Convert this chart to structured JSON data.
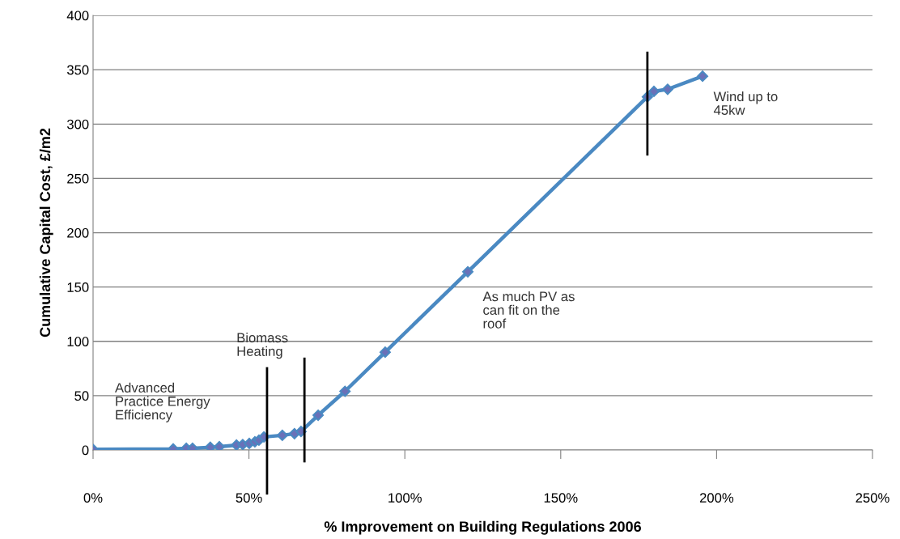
{
  "chart_data": {
    "type": "line",
    "xlabel": "% Improvement on Building Regulations 2006",
    "ylabel": "Cumulative Capital Cost, £/m2",
    "x": [
      0,
      25.7,
      29.9,
      31.9,
      37.6,
      40.5,
      46.0,
      48.0,
      50.1,
      51.9,
      53.2,
      54.8,
      60.7,
      64.6,
      66.7,
      72.2,
      80.8,
      93.7,
      120.2,
      177.8,
      179.9,
      184.3,
      195.5
    ],
    "series": [
      {
        "color": "#4a89c2",
        "values": [
          0.5,
          1,
          1.5,
          1.5,
          2.5,
          3,
          4.5,
          5,
          6,
          7.5,
          9,
          12,
          13.5,
          15,
          17,
          32,
          54,
          90,
          164,
          325,
          330,
          332,
          344
        ]
      }
    ],
    "marker": "diamond",
    "line_style": "solid",
    "grid": "y",
    "xlim": [
      0,
      250
    ],
    "xticks": [
      {
        "value": 0,
        "label": "0%"
      },
      {
        "value": 50,
        "label": "50%"
      },
      {
        "value": 100,
        "label": "100%"
      },
      {
        "value": 150,
        "label": "150%"
      },
      {
        "value": 200,
        "label": "200%"
      },
      {
        "value": 250,
        "label": "250%"
      }
    ],
    "ylim": [
      0,
      400
    ],
    "yticks": [
      0,
      50,
      100,
      150,
      200,
      250,
      300,
      350,
      400
    ],
    "ref_lines": [
      {
        "axis": "x",
        "value": 55.8,
        "color": "#000000"
      },
      {
        "axis": "x",
        "value": 67.8,
        "color": "#000000"
      },
      {
        "axis": "x",
        "value": 177.8,
        "color": "#000000"
      }
    ],
    "annotations": [
      "Advanced\nPractice Energy\nEfficiency",
      "Biomass\nHeating",
      "As much PV as\ncan fit on the\nroof",
      "Wind up to\n45kw"
    ]
  }
}
